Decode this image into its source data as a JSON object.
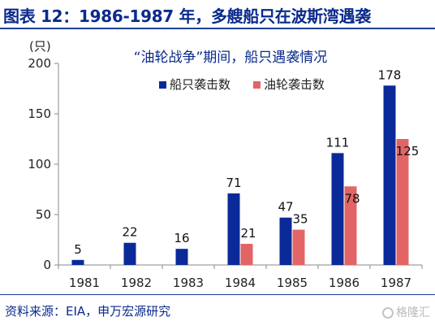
{
  "header": {
    "title": "图表 12：1986-1987 年，多艘船只在波斯湾遇袭"
  },
  "chart_data": {
    "type": "bar",
    "title": "“油轮战争”期间，船只遇袭情况",
    "ylabel": "(只)",
    "xlabel": "",
    "ylim": [
      0,
      200
    ],
    "yticks": [
      0,
      50,
      100,
      150,
      200
    ],
    "categories": [
      "1981",
      "1982",
      "1983",
      "1984",
      "1985",
      "1986",
      "1987"
    ],
    "series": [
      {
        "name": "船只袭击数",
        "color": "#0a2a99",
        "values": [
          5,
          22,
          16,
          71,
          47,
          111,
          178
        ]
      },
      {
        "name": "油轮袭击数",
        "color": "#e36464",
        "values": [
          null,
          null,
          null,
          21,
          35,
          78,
          125
        ]
      }
    ],
    "legend_position": "top-right",
    "grid": false
  },
  "footer": {
    "source": "资料来源：EIA，申万宏源研究"
  },
  "watermark": {
    "text": "格隆汇"
  }
}
